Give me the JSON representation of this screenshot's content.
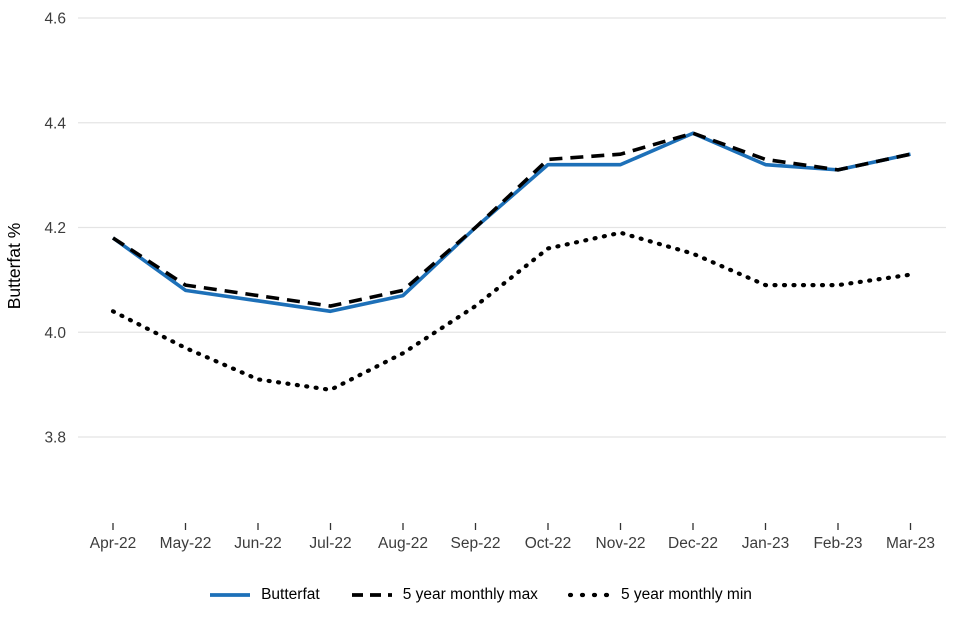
{
  "chart_data": {
    "type": "line",
    "title": "",
    "xlabel": "",
    "ylabel": "Butterfat %",
    "categories": [
      "Apr-22",
      "May-22",
      "Jun-22",
      "Jul-22",
      "Aug-22",
      "Sep-22",
      "Oct-22",
      "Nov-22",
      "Dec-22",
      "Jan-23",
      "Feb-23",
      "Mar-23"
    ],
    "yticks": [
      3.8,
      4.0,
      4.2,
      4.4,
      4.6
    ],
    "ylim": [
      3.65,
      4.62
    ],
    "grid": true,
    "legend_position": "bottom",
    "colors": {
      "butterfat_line": "#1d70b8",
      "reference_lines": "#000000",
      "gridline": "#e4e4e4",
      "axis_text": "#3c3c3c"
    },
    "series": [
      {
        "name": "Butterfat",
        "color": "#1d70b8",
        "style": "solid",
        "values": [
          4.18,
          4.08,
          4.06,
          4.04,
          4.07,
          4.2,
          4.32,
          4.32,
          4.38,
          4.32,
          4.31,
          4.34
        ]
      },
      {
        "name": "5 year monthly max",
        "color": "#000000",
        "style": "dashed",
        "values": [
          4.18,
          4.09,
          4.07,
          4.05,
          4.08,
          4.2,
          4.33,
          4.34,
          4.38,
          4.33,
          4.31,
          4.34
        ]
      },
      {
        "name": "5 year monthly min",
        "color": "#000000",
        "style": "dotted",
        "values": [
          4.04,
          3.97,
          3.91,
          3.89,
          3.96,
          4.05,
          4.16,
          4.19,
          4.15,
          4.09,
          4.09,
          4.11
        ]
      }
    ]
  }
}
